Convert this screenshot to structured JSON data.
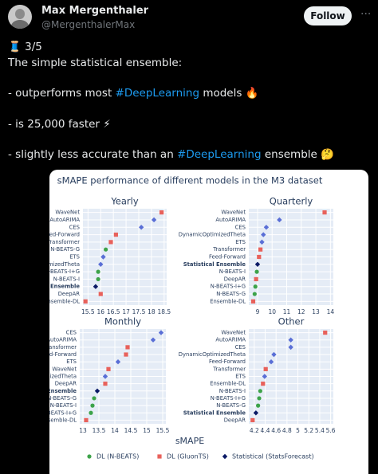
{
  "tweet": {
    "name": "Max Mergenthaler",
    "handle": "@MergenthalerMax",
    "follow": "Follow",
    "lines": [
      "🧵 3/5",
      "The simple statistical ensemble:",
      "- outperforms most #DeepLearning models 🔥",
      "- is 25,000 faster ⚡",
      "- slightly less accurate than an #DeepLearning ensemble 🤔"
    ]
  },
  "figure": {
    "title": "sMAPE performance of different models in the M3 dataset",
    "xlabel": "sMAPE",
    "legend": [
      {
        "name": "DL (N-BEATS)",
        "color": "#3da34a",
        "symbol": "circle"
      },
      {
        "name": "DL (GluonTS)",
        "color": "#e8615b",
        "symbol": "square"
      },
      {
        "name": "Statistical (StatsForecast)",
        "color": "#0b1a66",
        "symbol": "diamond"
      }
    ]
  },
  "chart_data": [
    {
      "type": "scatter",
      "title": "Yearly",
      "grid": true,
      "categories": [
        "WaveNet",
        "AutoARIMA",
        "CES",
        "Feed-Forward",
        "Transformer",
        "N-BEATS-G",
        "ETS",
        "DynamicOptimizedTheta",
        "N-BEATS-I+G",
        "N-BEATS-I",
        "Statistical Ensemble",
        "DeepAR",
        "Ensemble-DL"
      ],
      "values": [
        18.4,
        18.1,
        17.6,
        16.6,
        16.4,
        16.2,
        16.1,
        16.0,
        15.9,
        15.9,
        15.8,
        16.0,
        15.4
      ],
      "colors": [
        "#e8615b",
        "#5a6fd6",
        "#5a6fd6",
        "#e8615b",
        "#e8615b",
        "#3da34a",
        "#5a6fd6",
        "#5a6fd6",
        "#3da34a",
        "#3da34a",
        "#0b1a66",
        "#e8615b",
        "#e8615b"
      ],
      "symbols": [
        "square",
        "diamond",
        "diamond",
        "square",
        "square",
        "circle",
        "diamond",
        "diamond",
        "circle",
        "circle",
        "diamond",
        "square",
        "square"
      ],
      "emphasis": [
        10
      ],
      "xlim": [
        15.3,
        18.6
      ],
      "xticks": [
        15.5,
        16,
        16.5,
        17,
        17.5,
        18,
        18.5
      ]
    },
    {
      "type": "scatter",
      "title": "Quarterly",
      "grid": true,
      "categories": [
        "WaveNet",
        "AutoARIMA",
        "CES",
        "DynamicOptimizedTheta",
        "ETS",
        "Transformer",
        "Feed-Forward",
        "Statistical Ensemble",
        "N-BEATS-I",
        "DeepAR",
        "N-BEATS-I+G",
        "N-BEATS-G",
        "Ensemble-DL"
      ],
      "values": [
        13.6,
        10.5,
        9.6,
        9.4,
        9.3,
        9.2,
        9.1,
        9.0,
        8.95,
        8.9,
        8.85,
        8.8,
        8.7
      ],
      "colors": [
        "#e8615b",
        "#5a6fd6",
        "#5a6fd6",
        "#5a6fd6",
        "#5a6fd6",
        "#e8615b",
        "#e8615b",
        "#0b1a66",
        "#3da34a",
        "#e8615b",
        "#3da34a",
        "#3da34a",
        "#e8615b"
      ],
      "symbols": [
        "square",
        "diamond",
        "diamond",
        "diamond",
        "diamond",
        "square",
        "square",
        "diamond",
        "circle",
        "square",
        "circle",
        "circle",
        "square"
      ],
      "emphasis": [
        7
      ],
      "xlim": [
        8.4,
        14.2
      ],
      "xticks": [
        9,
        10,
        11,
        12,
        13,
        14
      ]
    },
    {
      "type": "scatter",
      "title": "Monthly",
      "grid": true,
      "categories": [
        "CES",
        "AutoARIMA",
        "Transformer",
        "Feed-Forward",
        "ETS",
        "WaveNet",
        "DynamicOptimizedTheta",
        "DeepAR",
        "Statistical Ensemble",
        "N-BEATS-G",
        "N-BEATS-I",
        "N-BEATS-I+G",
        "Ensemble-DL"
      ],
      "values": [
        15.45,
        15.2,
        14.4,
        14.35,
        14.1,
        13.8,
        13.7,
        13.7,
        13.45,
        13.35,
        13.3,
        13.25,
        13.1
      ],
      "colors": [
        "#5a6fd6",
        "#5a6fd6",
        "#e8615b",
        "#e8615b",
        "#5a6fd6",
        "#e8615b",
        "#5a6fd6",
        "#e8615b",
        "#0b1a66",
        "#3da34a",
        "#3da34a",
        "#3da34a",
        "#e8615b"
      ],
      "symbols": [
        "diamond",
        "diamond",
        "square",
        "square",
        "diamond",
        "square",
        "diamond",
        "square",
        "diamond",
        "circle",
        "circle",
        "circle",
        "square"
      ],
      "emphasis": [
        8
      ],
      "xlim": [
        12.9,
        15.6
      ],
      "xticks": [
        13,
        13.5,
        14,
        14.5,
        15,
        15.5
      ]
    },
    {
      "type": "scatter",
      "title": "Other",
      "grid": true,
      "categories": [
        "WaveNet",
        "AutoARIMA",
        "CES",
        "DynamicOptimizedTheta",
        "Feed-Forward",
        "Transformer",
        "ETS",
        "Ensemble-DL",
        "N-BEATS-I",
        "N-BEATS-I+G",
        "N-BEATS-G",
        "Statistical Ensemble",
        "DeepAR"
      ],
      "values": [
        5.5,
        4.87,
        4.87,
        4.56,
        4.51,
        4.41,
        4.39,
        4.36,
        4.31,
        4.29,
        4.27,
        4.23,
        4.17
      ],
      "colors": [
        "#e8615b",
        "#5a6fd6",
        "#5a6fd6",
        "#5a6fd6",
        "#5a6fd6",
        "#e8615b",
        "#5a6fd6",
        "#e8615b",
        "#3da34a",
        "#3da34a",
        "#3da34a",
        "#0b1a66",
        "#e8615b"
      ],
      "symbols": [
        "square",
        "diamond",
        "diamond",
        "diamond",
        "diamond",
        "square",
        "diamond",
        "square",
        "circle",
        "circle",
        "circle",
        "diamond",
        "square"
      ],
      "emphasis": [
        11
      ],
      "xlim": [
        4.1,
        5.65
      ],
      "xticks": [
        4.2,
        4.4,
        4.6,
        4.8,
        5,
        5.2,
        5.4,
        5.6
      ]
    }
  ]
}
